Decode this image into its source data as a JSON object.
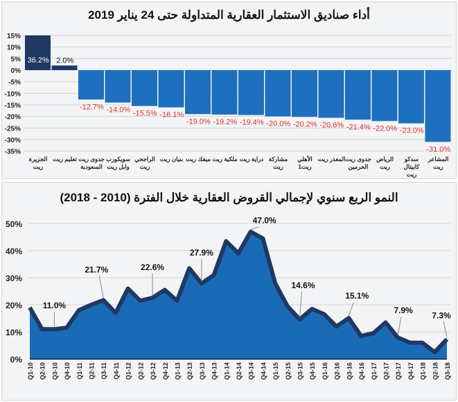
{
  "chart_data": [
    {
      "type": "bar",
      "title": "أداء صناديق الاستثمار العقارية المتداولة حتى 24 يناير 2019",
      "categories": [
        "الجزيرة ريت",
        "تعليم ريت",
        "جدوى ريت السعودية",
        "سويكورب وابل ريت",
        "الراجحي ريت",
        "بنيان ريت",
        "ميفك ريت",
        "ملكية ريت",
        "دراية ريت",
        "مشاركة ريت",
        "الأهلي ريت1",
        "المعذر ريت",
        "جدوى ريت الحرمين",
        "الرياض ريت",
        "سدكو كابيتال ريت",
        "المشاعر ريت"
      ],
      "values": [
        36.2,
        2.0,
        -12.7,
        -14.0,
        -15.5,
        -16.1,
        -19.0,
        -19.2,
        -19.4,
        -20.0,
        -20.2,
        -20.6,
        -21.4,
        -22.0,
        -23.0,
        -31.0
      ],
      "data_labels": [
        "36.2%",
        "2.0%",
        "-12.7%",
        "-14.0%",
        "-15.5%",
        "-16.1%",
        "-19.0%",
        "-19.2%",
        "-19.4%",
        "-20.0%",
        "-20.2%",
        "-20.6%",
        "-21.4%",
        "-22.0%",
        "-23.0%",
        "-31.0%"
      ],
      "ylim": [
        -35,
        15
      ],
      "yticks": [
        "15%",
        "10%",
        "5%",
        "0%",
        "-5%",
        "-10%",
        "-15%",
        "-20%",
        "-25%",
        "-30%",
        "-35%"
      ],
      "grid": true,
      "colors": {
        "positive": "#1f3864",
        "negative": "#1f6fbf",
        "negative_label": "#d9342b"
      }
    },
    {
      "type": "area",
      "title": "النمو الربع سنوي لإجمالي القروض العقارية خلال الفترة (2010 - 2018)",
      "categories": [
        "Q1-10",
        "Q2-10",
        "Q3-10",
        "Q4-10",
        "Q1-11",
        "Q2-11",
        "Q3-11",
        "Q4-11",
        "Q1-12",
        "Q2-12",
        "Q3-12",
        "Q4-12",
        "Q1-13",
        "Q2-13",
        "Q3-13",
        "Q4-13",
        "Q1-14",
        "Q2-14",
        "Q3-14",
        "Q4-14",
        "Q1-15",
        "Q2-15",
        "Q3-15",
        "Q4-15",
        "Q1-16",
        "Q2-16",
        "Q3-16",
        "Q4-16",
        "Q1-17",
        "Q2-17",
        "Q3-17",
        "Q4-17",
        "Q1-18",
        "Q2-18",
        "Q3-18"
      ],
      "values": [
        19,
        11,
        11.0,
        11.5,
        18,
        20,
        21.7,
        17,
        26,
        21.5,
        22.6,
        25.5,
        21.5,
        33.5,
        27.9,
        31,
        43.5,
        39,
        47.0,
        44.5,
        28,
        19.5,
        14.6,
        18.5,
        16.5,
        12,
        15.1,
        8.5,
        9.5,
        13.5,
        7.9,
        6,
        6,
        2.5,
        7.3
      ],
      "annotations": [
        {
          "category": "Q3-10",
          "label": "11.0%"
        },
        {
          "category": "Q3-11",
          "label": "21.7%"
        },
        {
          "category": "Q3-12",
          "label": "22.6%"
        },
        {
          "category": "Q3-13",
          "label": "27.9%"
        },
        {
          "category": "Q3-14",
          "label": "47.0%"
        },
        {
          "category": "Q3-15",
          "label": "14.6%"
        },
        {
          "category": "Q3-16",
          "label": "15.1%"
        },
        {
          "category": "Q3-17",
          "label": "7.9%"
        },
        {
          "category": "Q3-18",
          "label": "7.3%"
        }
      ],
      "ylim": [
        0,
        50
      ],
      "yticks": [
        "0%",
        "10%",
        "20%",
        "30%",
        "40%",
        "50%"
      ],
      "grid": true,
      "colors": {
        "fill": "#1a6bb5",
        "line": "#1f3864"
      }
    }
  ]
}
